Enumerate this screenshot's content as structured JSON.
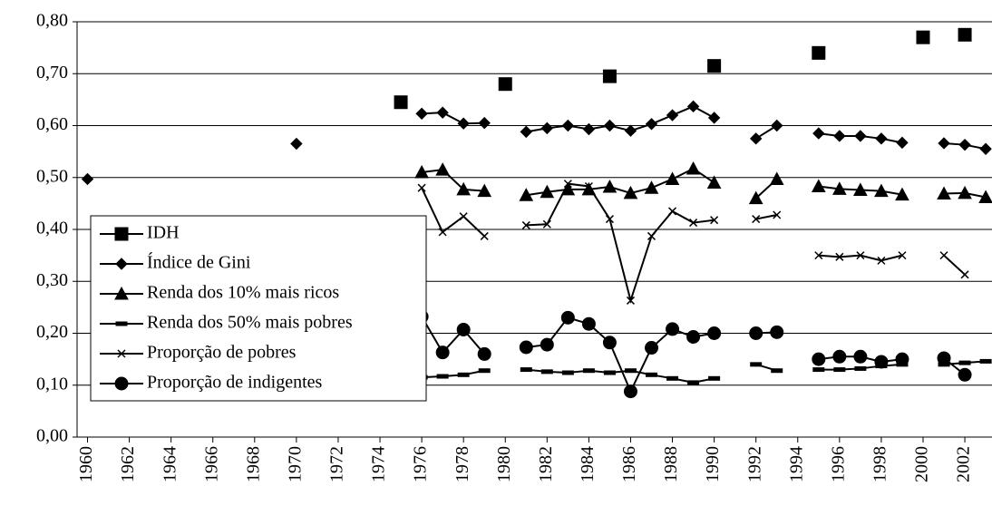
{
  "chart_data": {
    "type": "line",
    "x": [
      1960,
      1961,
      1962,
      1963,
      1964,
      1965,
      1966,
      1967,
      1968,
      1969,
      1970,
      1971,
      1972,
      1973,
      1974,
      1975,
      1976,
      1977,
      1978,
      1979,
      1980,
      1981,
      1982,
      1983,
      1984,
      1985,
      1986,
      1987,
      1988,
      1989,
      1990,
      1991,
      1992,
      1993,
      1994,
      1995,
      1996,
      1997,
      1998,
      1999,
      2000,
      2001,
      2002,
      2003
    ],
    "xlim": [
      1959.5,
      2003.3
    ],
    "xticks": [
      1960,
      1962,
      1964,
      1966,
      1968,
      1970,
      1972,
      1974,
      1976,
      1978,
      1980,
      1982,
      1984,
      1986,
      1988,
      1990,
      1992,
      1994,
      1996,
      1998,
      2000,
      2002
    ],
    "ylim": [
      0,
      0.8
    ],
    "yticks": [
      {
        "value": 0,
        "label": "0,00"
      },
      {
        "value": 0.1,
        "label": "0,10"
      },
      {
        "value": 0.2,
        "label": "0,20"
      },
      {
        "value": 0.3,
        "label": "0,30"
      },
      {
        "value": 0.4,
        "label": "0,40"
      },
      {
        "value": 0.5,
        "label": "0,50"
      },
      {
        "value": 0.6,
        "label": "0,60"
      },
      {
        "value": 0.7,
        "label": "0,70"
      },
      {
        "value": 0.8,
        "label": "0,80"
      }
    ],
    "grid": true,
    "legend": "left",
    "series": [
      {
        "name": "IDH",
        "color": "#000000",
        "marker": "square",
        "values": [
          null,
          null,
          null,
          null,
          null,
          null,
          null,
          null,
          null,
          null,
          null,
          null,
          null,
          null,
          null,
          0.645,
          null,
          null,
          null,
          null,
          0.68,
          null,
          null,
          null,
          null,
          0.695,
          null,
          null,
          null,
          null,
          0.715,
          null,
          null,
          null,
          null,
          0.74,
          null,
          null,
          null,
          null,
          0.77,
          null,
          0.775,
          null
        ]
      },
      {
        "name": "Índice de Gini",
        "color": "#000000",
        "marker": "diamond",
        "values": [
          0.497,
          null,
          null,
          null,
          null,
          null,
          null,
          null,
          null,
          null,
          0.565,
          null,
          null,
          null,
          null,
          null,
          0.623,
          0.625,
          0.604,
          0.605,
          null,
          0.588,
          0.595,
          0.6,
          0.593,
          0.6,
          0.59,
          0.603,
          0.62,
          0.637,
          0.615,
          null,
          0.575,
          0.6,
          null,
          0.585,
          0.58,
          0.58,
          0.575,
          0.567,
          null,
          0.566,
          0.563,
          0.555
        ]
      },
      {
        "name": "Renda dos 10% mais ricos",
        "color": "#000000",
        "marker": "triangle",
        "values": [
          null,
          null,
          null,
          null,
          null,
          null,
          null,
          null,
          null,
          null,
          null,
          null,
          null,
          null,
          null,
          null,
          0.51,
          0.515,
          0.477,
          0.474,
          null,
          0.466,
          0.472,
          0.477,
          0.477,
          0.482,
          0.47,
          0.48,
          0.497,
          0.517,
          0.49,
          null,
          0.46,
          0.497,
          null,
          0.483,
          0.478,
          0.476,
          0.474,
          0.467,
          null,
          0.469,
          0.47,
          0.462
        ]
      },
      {
        "name": "Renda dos 50% mais pobres",
        "color": "#000000",
        "marker": "dash",
        "values": [
          null,
          null,
          null,
          null,
          null,
          null,
          null,
          null,
          null,
          null,
          null,
          null,
          null,
          null,
          null,
          null,
          0.115,
          0.117,
          0.12,
          0.128,
          null,
          0.13,
          0.126,
          0.124,
          0.128,
          0.124,
          0.128,
          0.12,
          0.113,
          0.105,
          0.113,
          null,
          0.14,
          0.128,
          null,
          0.13,
          0.13,
          0.132,
          0.137,
          0.14,
          null,
          0.14,
          0.143,
          0.146
        ]
      },
      {
        "name": "Proporção de pobres",
        "color": "#000000",
        "marker": "x",
        "values": [
          null,
          null,
          null,
          null,
          null,
          null,
          null,
          null,
          null,
          null,
          null,
          null,
          null,
          null,
          null,
          null,
          0.48,
          0.395,
          0.425,
          0.387,
          null,
          0.408,
          0.41,
          0.488,
          0.483,
          0.42,
          0.263,
          0.387,
          0.435,
          0.413,
          0.418,
          null,
          0.42,
          0.428,
          null,
          0.35,
          0.347,
          0.35,
          0.34,
          0.35,
          null,
          0.35,
          0.313,
          null
        ]
      },
      {
        "name": "Proporção de indigentes",
        "color": "#000000",
        "marker": "circle",
        "values": [
          null,
          null,
          null,
          null,
          null,
          null,
          null,
          null,
          null,
          null,
          null,
          null,
          null,
          null,
          null,
          null,
          0.232,
          0.163,
          0.207,
          0.16,
          null,
          0.173,
          0.178,
          0.23,
          0.218,
          0.182,
          0.088,
          0.172,
          0.208,
          0.193,
          0.2,
          null,
          0.2,
          0.202,
          null,
          0.15,
          0.155,
          0.155,
          0.145,
          0.15,
          null,
          0.152,
          0.12,
          null
        ]
      }
    ]
  }
}
